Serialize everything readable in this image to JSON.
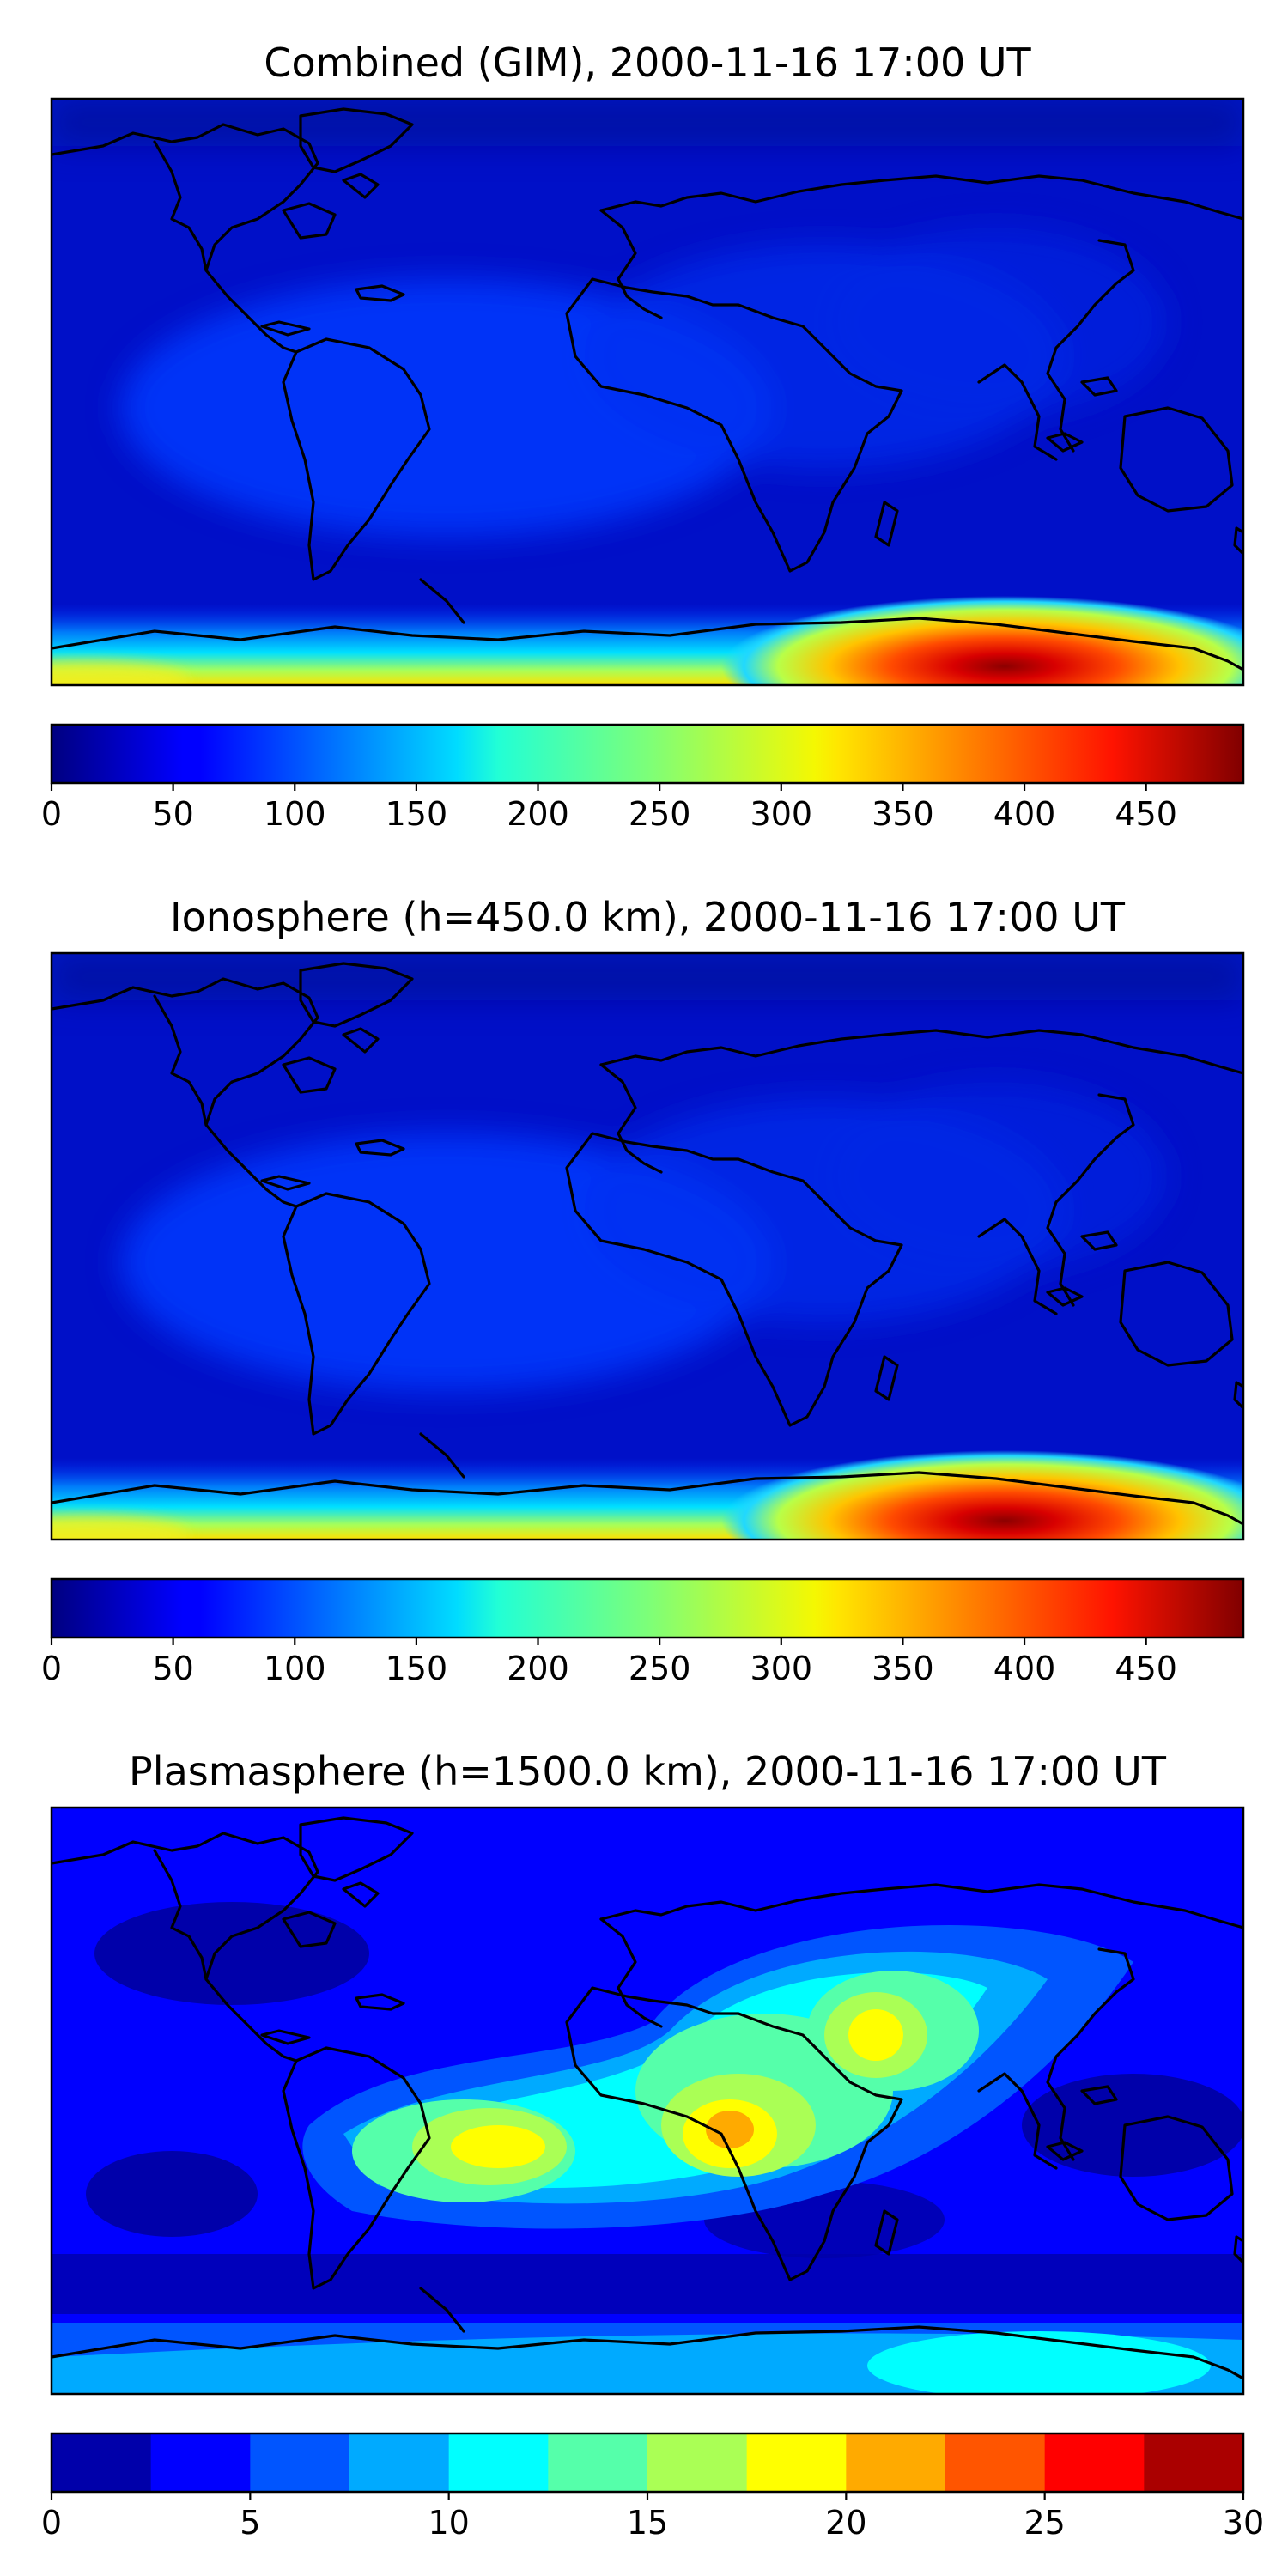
{
  "panels": [
    {
      "title": "Combined (GIM), 2000-11-16 17:00 UT",
      "field": "gim",
      "colorbar": {
        "colormap": "jet",
        "continuous": true,
        "vmin": 0,
        "vmax": 490,
        "ticks": [
          0,
          50,
          100,
          150,
          200,
          250,
          300,
          350,
          400,
          450
        ]
      }
    },
    {
      "title": "Ionosphere  (h=450.0 km), 2000-11-16 17:00 UT",
      "field": "iono",
      "colorbar": {
        "colormap": "jet",
        "continuous": true,
        "vmin": 0,
        "vmax": 490,
        "ticks": [
          0,
          50,
          100,
          150,
          200,
          250,
          300,
          350,
          400,
          450
        ]
      }
    },
    {
      "title": "Plasmasphere (h=1500.0 km), 2000-11-16 17:00 UT",
      "field": "plasma",
      "colorbar": {
        "colormap": "jet",
        "continuous": false,
        "vmin": 0,
        "vmax": 30,
        "levels": [
          0,
          2.5,
          5,
          7.5,
          10,
          12.5,
          15,
          17.5,
          20,
          22.5,
          25,
          27.5,
          30
        ],
        "ticks": [
          0,
          5,
          10,
          15,
          20,
          25,
          30
        ]
      }
    }
  ]
}
